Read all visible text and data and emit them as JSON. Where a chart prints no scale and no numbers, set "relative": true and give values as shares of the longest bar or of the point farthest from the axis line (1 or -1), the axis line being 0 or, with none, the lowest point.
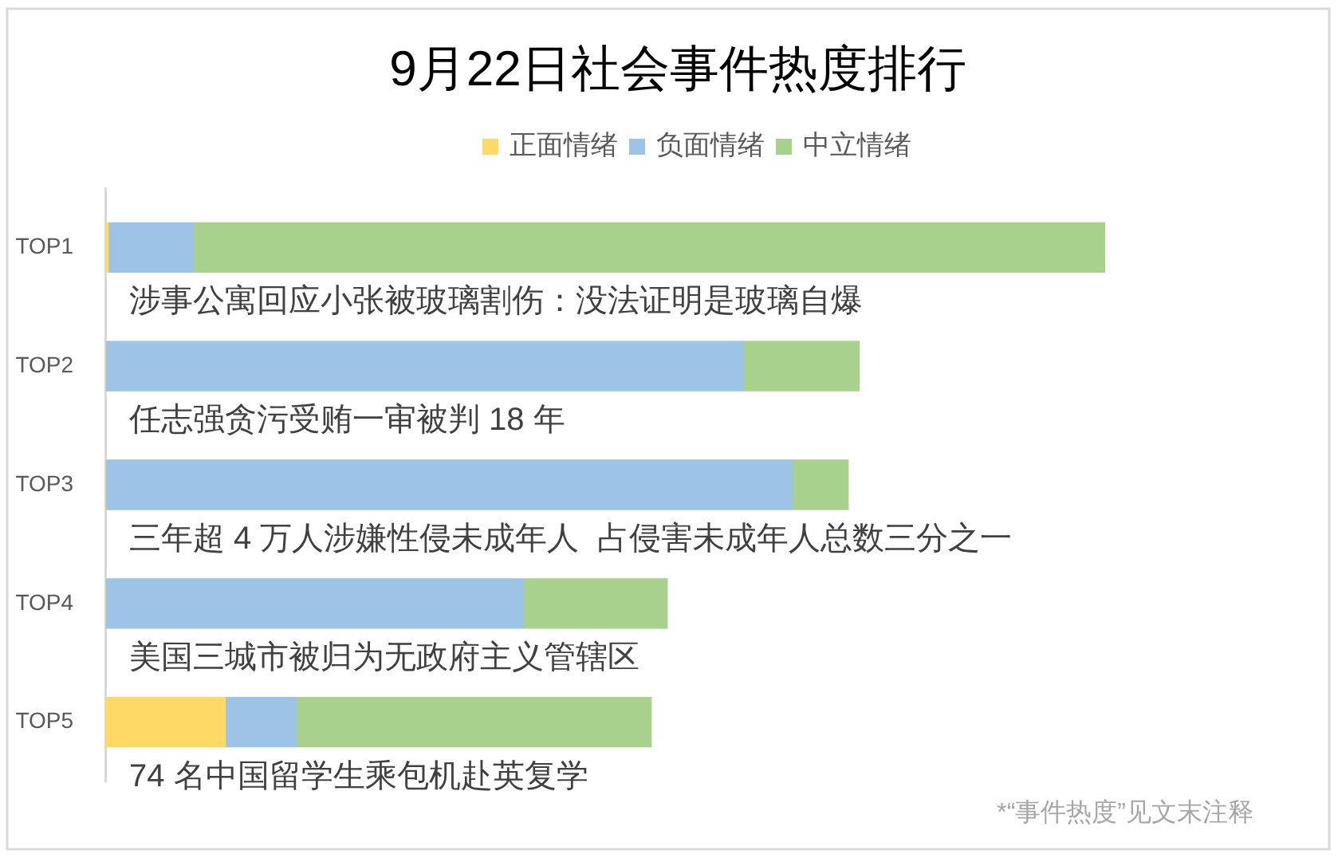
{
  "chart_data": {
    "type": "bar",
    "orientation": "horizontal",
    "stacked": true,
    "relative": true,
    "title": "9月22日社会事件热度排行",
    "legend": "top",
    "categories": [
      "TOP1",
      "TOP2",
      "TOP3",
      "TOP4",
      "TOP5"
    ],
    "series": [
      {
        "name": "正面情绪",
        "color": "#ffd966",
        "values": [
          0.003,
          0,
          0,
          0,
          0.12
        ]
      },
      {
        "name": "负面情绪",
        "color": "#9dc3e6",
        "values": [
          0.085,
          0.638,
          0.687,
          0.418,
          0.071
        ]
      },
      {
        "name": "中立情绪",
        "color": "#a9d18e",
        "values": [
          0.912,
          0.116,
          0.056,
          0.144,
          0.355
        ]
      }
    ],
    "annotations": [
      "涉事公寓回应小张被玻璃割伤：没法证明是玻璃自爆",
      "任志强贪污受贿一审被判 18 年",
      "三年超 4 万人涉嫌性侵未成年人  占侵害未成年人总数三分之一",
      "美国三城市被归为无政府主义管辖区",
      "74 名中国留学生乘包机赴英复学",
      "*“事件热度”见文末注释"
    ]
  }
}
